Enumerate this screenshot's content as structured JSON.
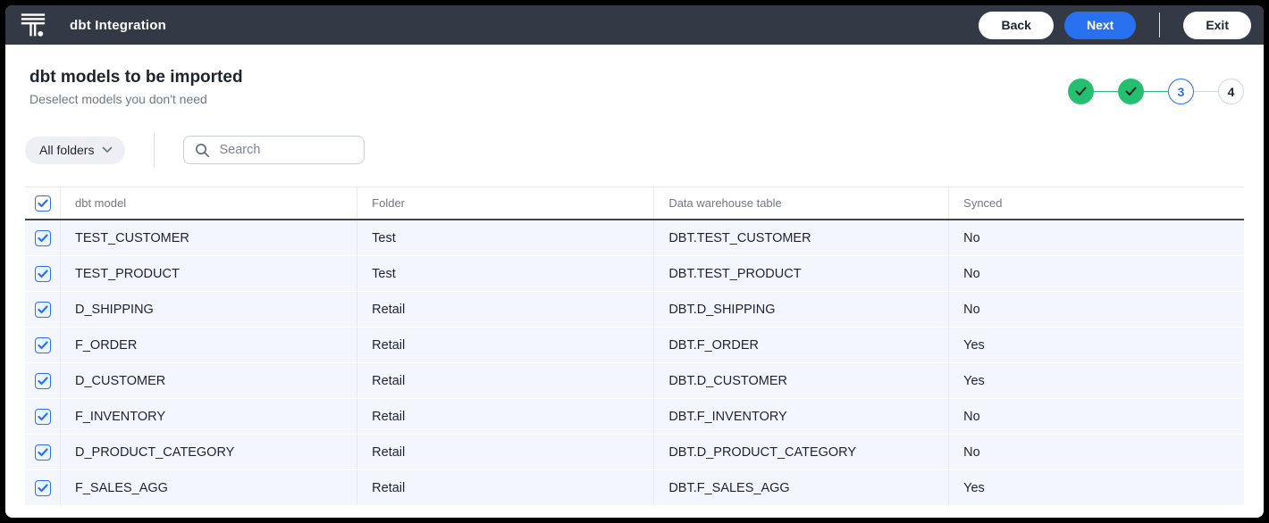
{
  "topbar": {
    "logo": "thoughtspot-logo",
    "title": "dbt Integration",
    "back_label": "Back",
    "next_label": "Next",
    "exit_label": "Exit"
  },
  "page": {
    "title": "dbt models to be imported",
    "subtitle": "Deselect models you don't need"
  },
  "stepper": {
    "steps": [
      {
        "id": 1,
        "state": "complete",
        "label": ""
      },
      {
        "id": 2,
        "state": "complete",
        "label": ""
      },
      {
        "id": 3,
        "state": "active",
        "label": "3"
      },
      {
        "id": 4,
        "state": "pending",
        "label": "4"
      }
    ]
  },
  "filters": {
    "folder_filter_label": "All folders",
    "search_placeholder": "Search",
    "search_value": ""
  },
  "table": {
    "select_all_checked": true,
    "columns": [
      "dbt model",
      "Folder",
      "Data warehouse table",
      "Synced"
    ],
    "rows": [
      {
        "checked": true,
        "model": "TEST_CUSTOMER",
        "folder": "Test",
        "warehouse_table": "DBT.TEST_CUSTOMER",
        "synced": "No"
      },
      {
        "checked": true,
        "model": "TEST_PRODUCT",
        "folder": "Test",
        "warehouse_table": "DBT.TEST_PRODUCT",
        "synced": "No"
      },
      {
        "checked": true,
        "model": "D_SHIPPING",
        "folder": "Retail",
        "warehouse_table": "DBT.D_SHIPPING",
        "synced": "No"
      },
      {
        "checked": true,
        "model": "F_ORDER",
        "folder": "Retail",
        "warehouse_table": "DBT.F_ORDER",
        "synced": "Yes"
      },
      {
        "checked": true,
        "model": "D_CUSTOMER",
        "folder": "Retail",
        "warehouse_table": "DBT.D_CUSTOMER",
        "synced": "Yes"
      },
      {
        "checked": true,
        "model": "F_INVENTORY",
        "folder": "Retail",
        "warehouse_table": "DBT.F_INVENTORY",
        "synced": "No"
      },
      {
        "checked": true,
        "model": "D_PRODUCT_CATEGORY",
        "folder": "Retail",
        "warehouse_table": "DBT.D_PRODUCT_CATEGORY",
        "synced": "No"
      },
      {
        "checked": true,
        "model": "F_SALES_AGG",
        "folder": "Retail",
        "warehouse_table": "DBT.F_SALES_AGG",
        "synced": "Yes"
      }
    ]
  },
  "colors": {
    "topbar_bg": "#333a46",
    "accent_blue": "#2770ef",
    "success_green": "#25bf71",
    "row_bg": "#f3f6fc",
    "text_dark": "#1d232f",
    "text_gray": "#6e7884"
  }
}
